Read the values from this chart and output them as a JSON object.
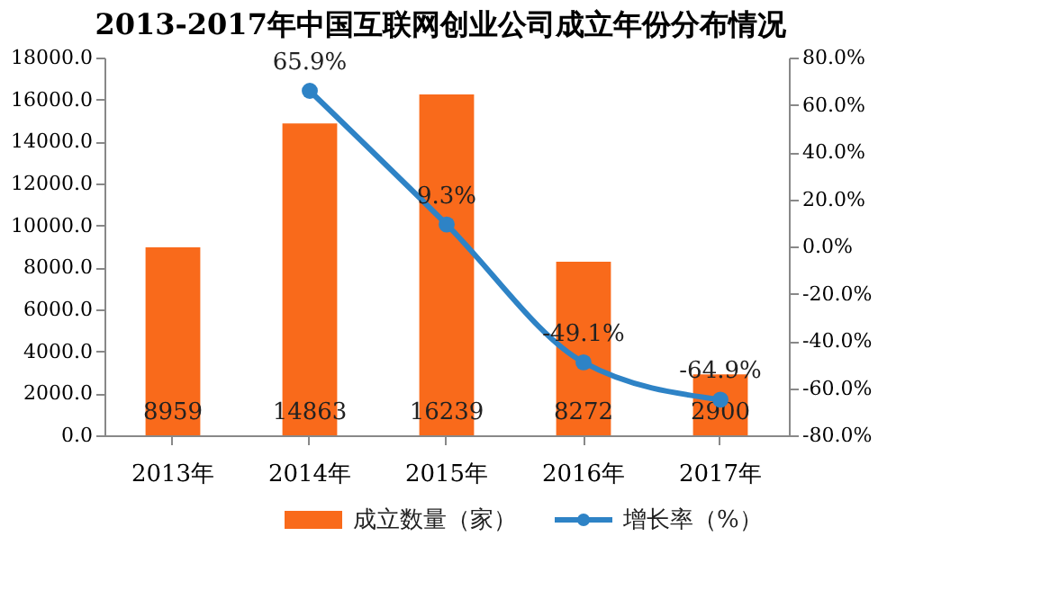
{
  "chart_data": {
    "type": "bar",
    "title": "2013-2017年中国互联网创业公司成立年份分布情况",
    "categories": [
      "2013年",
      "2014年",
      "2015年",
      "2016年",
      "2017年"
    ],
    "series": [
      {
        "name": "成立数量（家）",
        "color": "#f96a1b",
        "values": [
          8959,
          14863,
          16239,
          8272,
          2900
        ],
        "value_labels": [
          "8959",
          "14863",
          "16239",
          "8272",
          "2900"
        ]
      },
      {
        "name": "增长率（%）",
        "type": "line",
        "axis": "y2",
        "color": "#2e83c6",
        "marker": "circle",
        "values": [
          null,
          65.9,
          9.3,
          -49.1,
          -64.9
        ],
        "value_labels": [
          null,
          "65.9%",
          "9.3%",
          "-49.1%",
          "-64.9%"
        ]
      }
    ],
    "ylim": [
      0,
      18000
    ],
    "yticks": [
      {
        "value": 0,
        "label": "0.0"
      },
      {
        "value": 2000,
        "label": "2000.0"
      },
      {
        "value": 4000,
        "label": "4000.0"
      },
      {
        "value": 6000,
        "label": "6000.0"
      },
      {
        "value": 8000,
        "label": "8000.0"
      },
      {
        "value": 10000,
        "label": "10000.0"
      },
      {
        "value": 12000,
        "label": "12000.0"
      },
      {
        "value": 14000,
        "label": "14000.0"
      },
      {
        "value": 16000,
        "label": "16000.0"
      },
      {
        "value": 18000,
        "label": "18000.0"
      }
    ],
    "y2lim": [
      -80,
      80
    ],
    "y2ticks": [
      {
        "value": -80,
        "label": "-80.0%"
      },
      {
        "value": -60,
        "label": "-60.0%"
      },
      {
        "value": -40,
        "label": "-40.0%"
      },
      {
        "value": -20,
        "label": "-20.0%"
      },
      {
        "value": 0,
        "label": "0.0%"
      },
      {
        "value": 20,
        "label": "20.0%"
      },
      {
        "value": 40,
        "label": "40.0%"
      },
      {
        "value": 60,
        "label": "60.0%"
      },
      {
        "value": 80,
        "label": "80.0%"
      }
    ],
    "grid": false,
    "legend": "bottom"
  }
}
